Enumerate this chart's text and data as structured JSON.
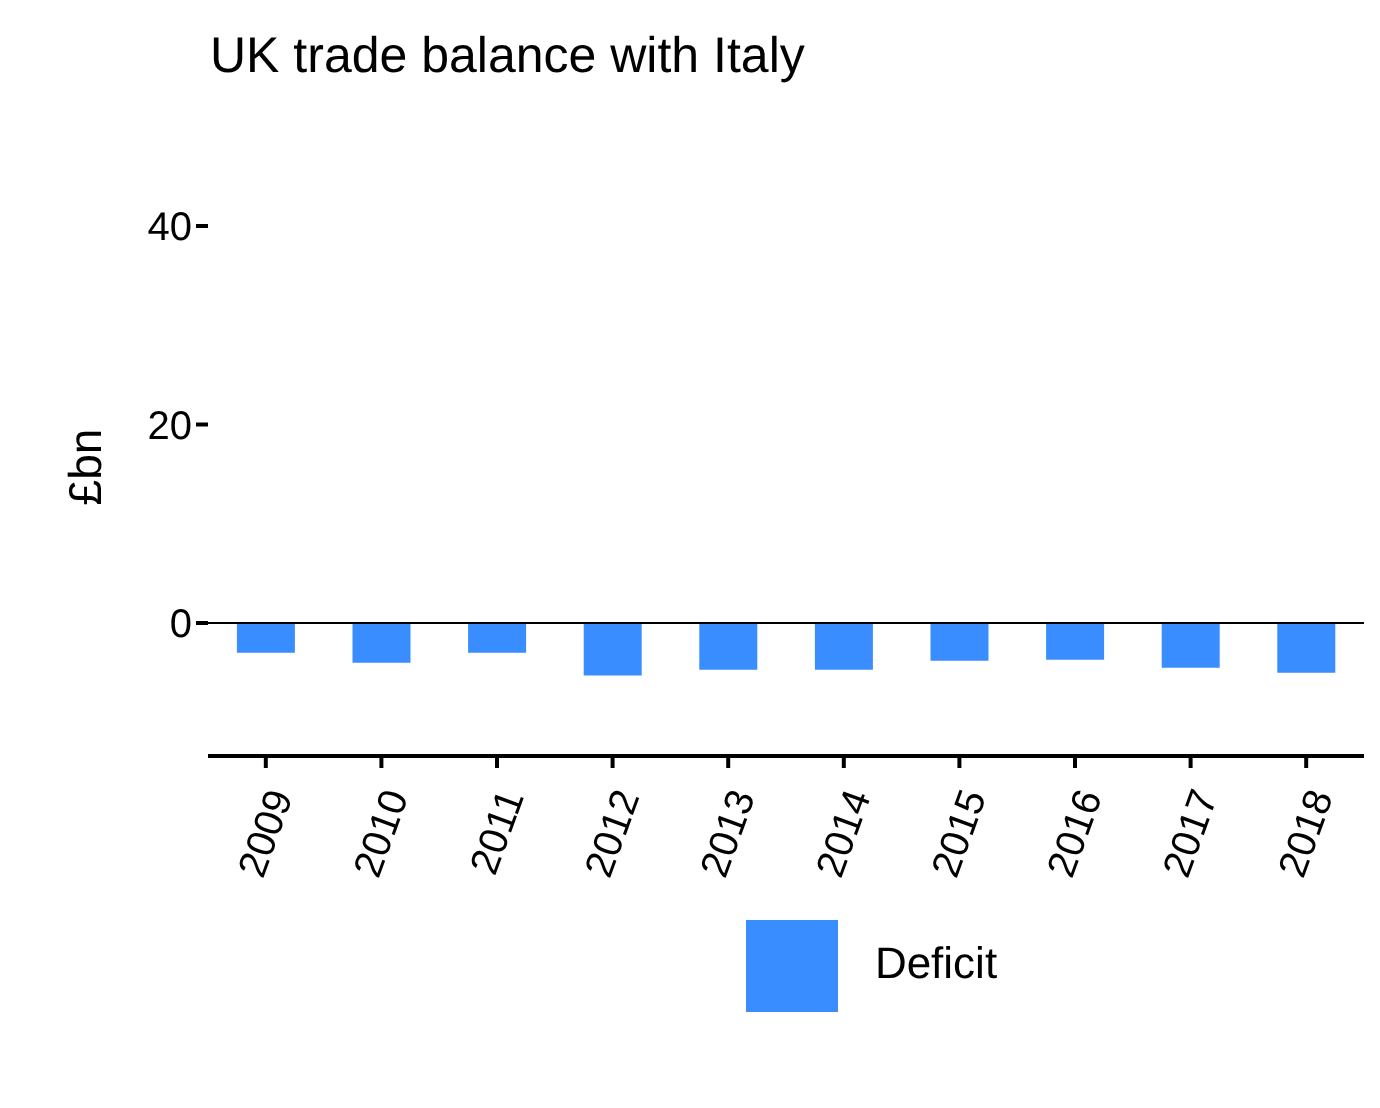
{
  "chart_data": {
    "type": "bar",
    "title": "UK trade balance with Italy",
    "ylabel": "£bn",
    "categories": [
      "2009",
      "2010",
      "2011",
      "2012",
      "2013",
      "2014",
      "2015",
      "2016",
      "2017",
      "2018"
    ],
    "series": [
      {
        "name": "Deficit",
        "color": "#3a8dff",
        "values": [
          -3.0,
          -4.0,
          -3.0,
          -5.3,
          -4.7,
          -4.7,
          -3.8,
          -3.7,
          -4.5,
          -5.0
        ]
      }
    ],
    "ylim": [
      -13.4,
      40
    ],
    "yticks": [
      0,
      20,
      40
    ],
    "ref_lines": [
      {
        "axis": "y",
        "value": 0,
        "color": "#000000"
      }
    ],
    "grid": false,
    "legend": "bottom"
  }
}
